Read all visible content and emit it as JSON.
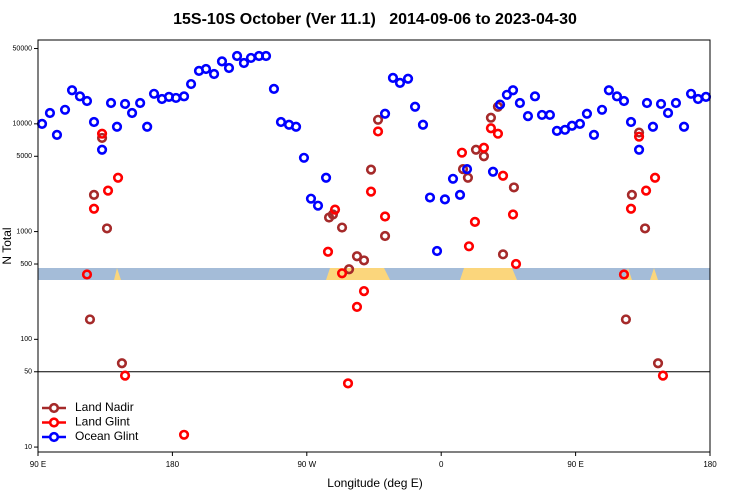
{
  "chart_data": {
    "type": "scatter",
    "title": "15S-10S October (Ver 11.1)   2014-09-06 to 2023-04-30",
    "xlabel": "Longitude (deg E)",
    "ylabel": "N Total",
    "xlim": [
      90,
      540
    ],
    "xticks": [
      {
        "value": 90,
        "label": "90 E"
      },
      180,
      {
        "value": 270,
        "label": "90 W"
      },
      {
        "value": 360,
        "label": "0"
      },
      {
        "value": 450,
        "label": "90 E"
      },
      {
        "value": 540,
        "label": "180"
      }
    ],
    "ylim": [
      9,
      60000
    ],
    "yscale": "log",
    "yticks": [
      10,
      50,
      100,
      500,
      1000,
      5000,
      10000,
      50000
    ],
    "reference_line": 50,
    "legend": "lower left",
    "series": [
      {
        "name": "Land Nadir",
        "color": "#a52a2a",
        "x": [
          124.8,
          127.5,
          132.9,
          136.2,
          146.2,
          284.9,
          287.5,
          293.6,
          298.3,
          303.6,
          308.3,
          313.0,
          317.7,
          322.4,
          374.6,
          377.9,
          383.3,
          388.6,
          393.3,
          398.0,
          401.4,
          408.7,
          483.7,
          487.7,
          492.5,
          496.5,
          505.2
        ],
        "values": [
          153,
          2190,
          7400,
          1070,
          60,
          1350,
          1440,
          1090,
          447,
          590,
          540,
          3760,
          10900,
          910,
          3800,
          3160,
          5750,
          5000,
          11400,
          14400,
          615,
          2570,
          153,
          2190,
          8300,
          1070,
          60
        ]
      },
      {
        "name": "Land Glint",
        "color": "#ff0000",
        "x": [
          122.8,
          127.5,
          132.9,
          136.9,
          143.6,
          148.3,
          187.8,
          284.2,
          288.9,
          293.6,
          297.6,
          303.6,
          308.3,
          313.0,
          317.7,
          322.4,
          373.9,
          378.6,
          382.6,
          388.6,
          393.3,
          398.0,
          401.4,
          408.1,
          410.1,
          482.4,
          487.1,
          492.5,
          497.2,
          503.2,
          508.5
        ],
        "values": [
          400,
          1630,
          8100,
          2400,
          3160,
          46,
          13,
          650,
          1600,
          410,
          39,
          200,
          280,
          2350,
          8500,
          1380,
          5400,
          730,
          1230,
          6000,
          9100,
          8100,
          3300,
          1440,
          500,
          400,
          1630,
          7600,
          2400,
          3160,
          46
        ]
      },
      {
        "name": "Ocean Glint",
        "color": "#0000ff",
        "x": [
          92.7,
          98.0,
          102.7,
          108.1,
          112.8,
          118.1,
          122.8,
          127.5,
          132.9,
          138.9,
          142.9,
          148.3,
          153.0,
          158.4,
          163.1,
          167.7,
          173.0,
          177.7,
          182.4,
          187.8,
          192.5,
          197.8,
          202.5,
          207.9,
          213.2,
          217.9,
          223.3,
          227.9,
          232.6,
          238.0,
          242.7,
          248.0,
          252.7,
          258.1,
          262.8,
          268.1,
          272.8,
          277.5,
          282.9,
          322.4,
          327.7,
          332.4,
          337.8,
          342.5,
          347.8,
          352.5,
          357.2,
          362.5,
          367.9,
          372.6,
          377.3,
          394.7,
          399.4,
          404.0,
          408.1,
          412.7,
          418.1,
          422.8,
          427.5,
          432.8,
          437.5,
          442.9,
          447.6,
          452.9,
          457.6,
          462.3,
          467.7,
          472.3,
          477.7,
          482.4,
          487.1,
          492.5,
          497.8,
          501.8,
          507.2,
          511.9,
          517.2,
          522.6,
          527.3,
          532.0,
          537.3
        ],
        "values": [
          10000,
          12600,
          7900,
          13500,
          20500,
          18000,
          16300,
          10400,
          5750,
          15600,
          9400,
          15300,
          12600,
          15600,
          9400,
          19000,
          17000,
          17800,
          17400,
          18000,
          23400,
          31000,
          32300,
          29000,
          38000,
          33000,
          42600,
          36700,
          40900,
          42600,
          42600,
          21100,
          10400,
          9800,
          9400,
          4840,
          2020,
          1740,
          3160,
          12400,
          26700,
          24000,
          26200,
          14400,
          9800,
          2070,
          660,
          1990,
          3090,
          2190,
          3800,
          3590,
          15100,
          18600,
          20500,
          15600,
          11800,
          18000,
          12100,
          12100,
          8600,
          8800,
          9600,
          10000,
          12400,
          7900,
          13500,
          20500,
          18000,
          16300,
          10400,
          5750,
          15600,
          9400,
          15300,
          12600,
          15600,
          9400,
          19000,
          17000,
          17800
        ]
      }
    ]
  }
}
